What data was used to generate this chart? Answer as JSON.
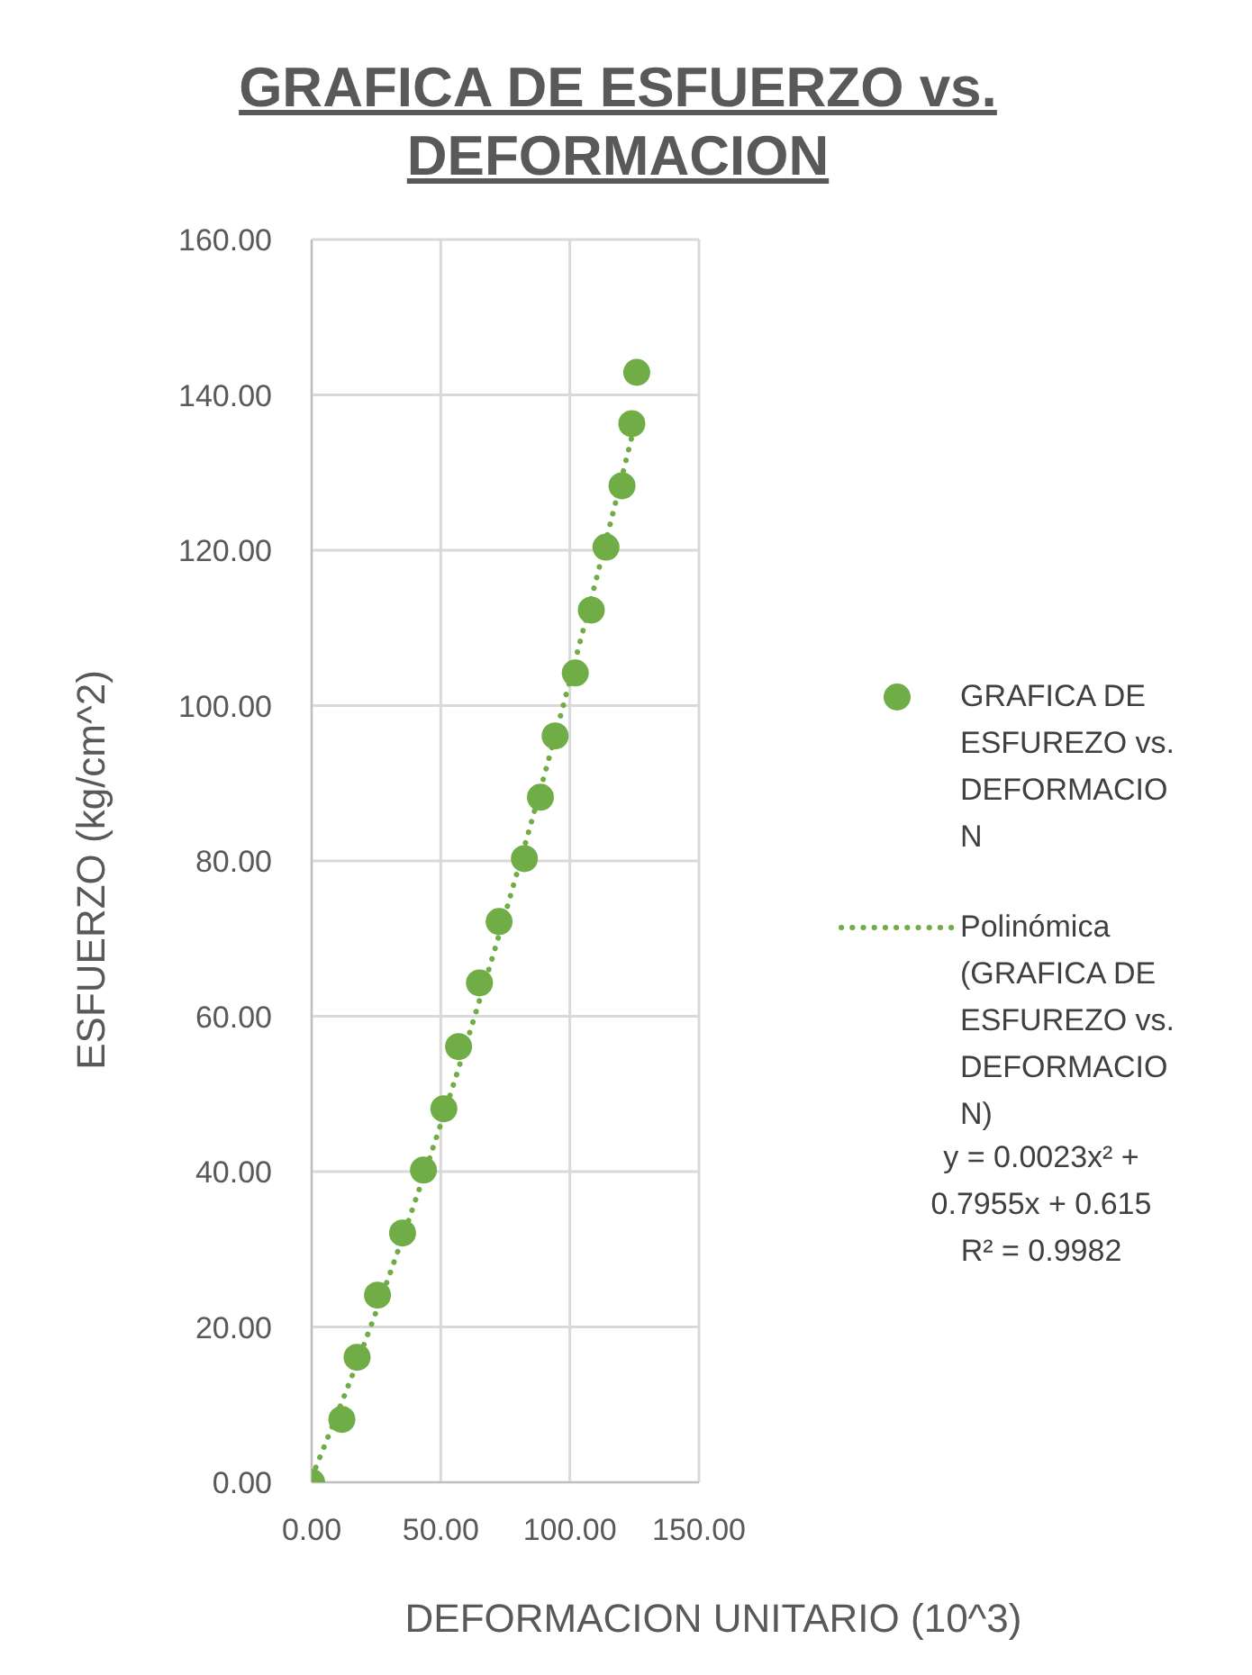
{
  "chart_data": {
    "type": "scatter",
    "title": "GRAFICA DE ESFUERZO vs. DEFORMACION",
    "xlabel": "DEFORMACION UNITARIO (10^3)",
    "ylabel": "ESFUERZO (kg/cm^2)",
    "xlim": [
      0,
      150
    ],
    "xticks": [
      {
        "value": 0,
        "label": "0.00"
      },
      {
        "value": 50,
        "label": "50.00"
      },
      {
        "value": 100,
        "label": "100.00"
      },
      {
        "value": 150,
        "label": "150.00"
      }
    ],
    "ylim": [
      0,
      160
    ],
    "yticks": [
      {
        "value": 0,
        "label": "0.00"
      },
      {
        "value": 20,
        "label": "20.00"
      },
      {
        "value": 40,
        "label": "40.00"
      },
      {
        "value": 60,
        "label": "60.00"
      },
      {
        "value": 80,
        "label": "80.00"
      },
      {
        "value": 100,
        "label": "100.00"
      },
      {
        "value": 120,
        "label": "120.00"
      },
      {
        "value": 140,
        "label": "140.00"
      },
      {
        "value": 160,
        "label": "160.00"
      }
    ],
    "grid": true,
    "legend": "right",
    "series": [
      {
        "name": "GRAFICA DE ESFUREZO vs. DEFORMACION",
        "marker": "circle",
        "color": "#70ad47",
        "x": [
          0,
          11.7,
          17.6,
          25.5,
          35.2,
          43.3,
          51.2,
          56.9,
          65,
          72.6,
          82.4,
          88.6,
          94.3,
          102.1,
          108.3,
          114,
          120.2,
          124,
          125.9
        ],
        "values": [
          0,
          8.1,
          16.1,
          24.1,
          32.1,
          40.2,
          48.1,
          56.1,
          64.3,
          72.2,
          80.3,
          88.2,
          96.1,
          104.2,
          112.3,
          120.4,
          128.3,
          136.3,
          142.9
        ]
      },
      {
        "name": "Polinómica (GRAFICA DE ESFUREZO vs. DEFORMACION)",
        "type": "line",
        "marker": "none",
        "line_style": "dotted",
        "color": "#70ad47",
        "x": [
          0,
          20,
          40,
          60,
          80,
          100,
          120,
          124
        ],
        "values": [
          0.6,
          17.5,
          36.1,
          56.6,
          79,
          103.2,
          129.2,
          134.6
        ]
      }
    ],
    "annotations": [
      "y = 0.0023x² + 0.7955x + 0.615",
      "R² = 0.9982"
    ]
  }
}
